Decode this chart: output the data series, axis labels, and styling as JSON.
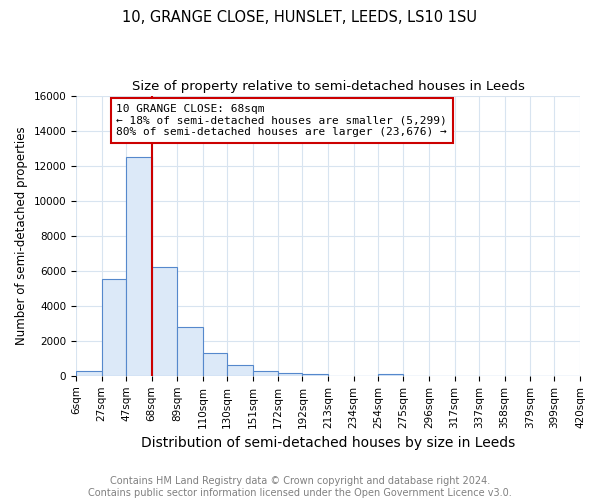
{
  "title1": "10, GRANGE CLOSE, HUNSLET, LEEDS, LS10 1SU",
  "title2": "Size of property relative to semi-detached houses in Leeds",
  "xlabel": "Distribution of semi-detached houses by size in Leeds",
  "ylabel": "Number of semi-detached properties",
  "footnote": "Contains HM Land Registry data © Crown copyright and database right 2024.\nContains public sector information licensed under the Open Government Licence v3.0.",
  "bin_edges": [
    6,
    27,
    47,
    68,
    89,
    110,
    130,
    151,
    172,
    192,
    213,
    234,
    254,
    275,
    296,
    317,
    337,
    358,
    379,
    399,
    420
  ],
  "bar_heights": [
    300,
    5500,
    12500,
    6200,
    2800,
    1300,
    600,
    250,
    150,
    100,
    0,
    0,
    100,
    0,
    0,
    0,
    0,
    0,
    0,
    0
  ],
  "bar_color": "#dce9f8",
  "bar_edge_color": "#5588cc",
  "red_line_x": 68,
  "red_line_color": "#cc0000",
  "annotation_text": "10 GRANGE CLOSE: 68sqm\n← 18% of semi-detached houses are smaller (5,299)\n80% of semi-detached houses are larger (23,676) →",
  "annotation_box_color": "#ffffff",
  "annotation_box_edge_color": "#cc0000",
  "ylim": [
    0,
    16000
  ],
  "yticks": [
    0,
    2000,
    4000,
    6000,
    8000,
    10000,
    12000,
    14000,
    16000
  ],
  "grid_color": "#d8e4f0",
  "background_color": "#ffffff",
  "title1_fontsize": 10.5,
  "title2_fontsize": 9.5,
  "xlabel_fontsize": 10,
  "ylabel_fontsize": 8.5,
  "annotation_fontsize": 8,
  "footnote_fontsize": 7,
  "tick_fontsize": 7.5
}
